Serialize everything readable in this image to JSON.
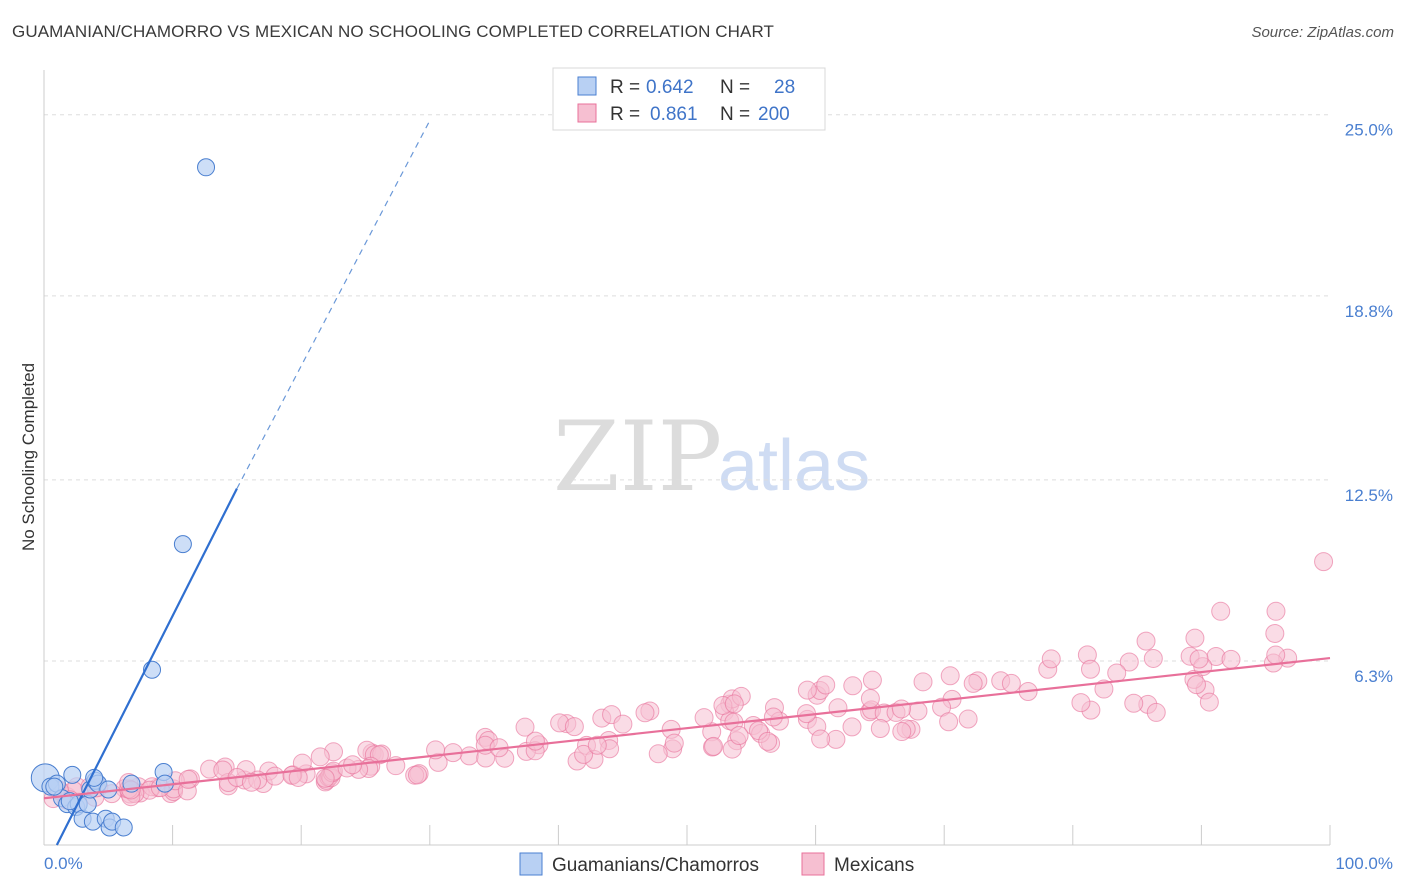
{
  "title": "GUAMANIAN/CHAMORRO VS MEXICAN NO SCHOOLING COMPLETED CORRELATION CHART",
  "source": "Source: ZipAtlas.com",
  "watermark": {
    "part1": "ZIP",
    "part2": "atlas"
  },
  "colors": {
    "blue": "#4a7fd0",
    "blue_fill": "#b8d0f3",
    "pink": "#e8709a",
    "pink_fill": "#f6bfd1",
    "grid": "#dddddd"
  },
  "legend_top": {
    "rows": [
      {
        "r_label": "R =",
        "r_value": "0.642",
        "n_label": "N =",
        "n_value": "28"
      },
      {
        "r_label": "R =",
        "r_value": "0.861",
        "n_label": "N =",
        "n_value": "200"
      }
    ]
  },
  "legend_bottom": {
    "series1": "Guamanians/Chamorros",
    "series2": "Mexicans"
  },
  "chart_data": {
    "type": "scatter",
    "title": "GUAMANIAN/CHAMORRO VS MEXICAN NO SCHOOLING COMPLETED CORRELATION CHART",
    "xlabel": "",
    "ylabel": "No Schooling Completed",
    "xlim": [
      0,
      100
    ],
    "ylim": [
      0,
      26.0
    ],
    "x_ticks": [
      "0.0%",
      "100.0%"
    ],
    "y_ticks": [
      {
        "value": 6.3,
        "label": "6.3%"
      },
      {
        "value": 12.5,
        "label": "12.5%"
      },
      {
        "value": 18.8,
        "label": "18.8%"
      },
      {
        "value": 25.0,
        "label": "25.0%"
      }
    ],
    "grid": "horizontal dashed",
    "legend": "top-center",
    "series": [
      {
        "name": "Guamanians/Chamorros",
        "points": [
          [
            0.1,
            2.3
          ],
          [
            0.5,
            2.0
          ],
          [
            1.0,
            2.1
          ],
          [
            1.4,
            1.6
          ],
          [
            1.8,
            1.4
          ],
          [
            2.2,
            2.4
          ],
          [
            2.5,
            1.3
          ],
          [
            2.7,
            1.4
          ],
          [
            3.0,
            0.9
          ],
          [
            3.4,
            1.4
          ],
          [
            3.6,
            1.9
          ],
          [
            3.8,
            0.8
          ],
          [
            4.0,
            2.2
          ],
          [
            4.2,
            2.1
          ],
          [
            4.8,
            0.9
          ],
          [
            5.0,
            1.9
          ],
          [
            5.1,
            0.6
          ],
          [
            5.3,
            0.8
          ],
          [
            6.2,
            0.6
          ],
          [
            6.8,
            2.1
          ],
          [
            8.4,
            6.0
          ],
          [
            9.3,
            2.5
          ],
          [
            9.4,
            2.1
          ],
          [
            10.8,
            10.3
          ],
          [
            12.6,
            23.2
          ],
          [
            0.8,
            2.0
          ],
          [
            2.0,
            1.5
          ],
          [
            3.9,
            2.3
          ]
        ],
        "trend": {
          "x0": 1.0,
          "y0": 0.0,
          "x1": 15.0,
          "y1": 12.2,
          "dashed_to": [
            30.0,
            24.8
          ]
        }
      },
      {
        "name": "Mexicans",
        "trend": {
          "x0": 0,
          "y0": 1.6,
          "x1": 100,
          "y1": 6.4
        }
      }
    ]
  }
}
